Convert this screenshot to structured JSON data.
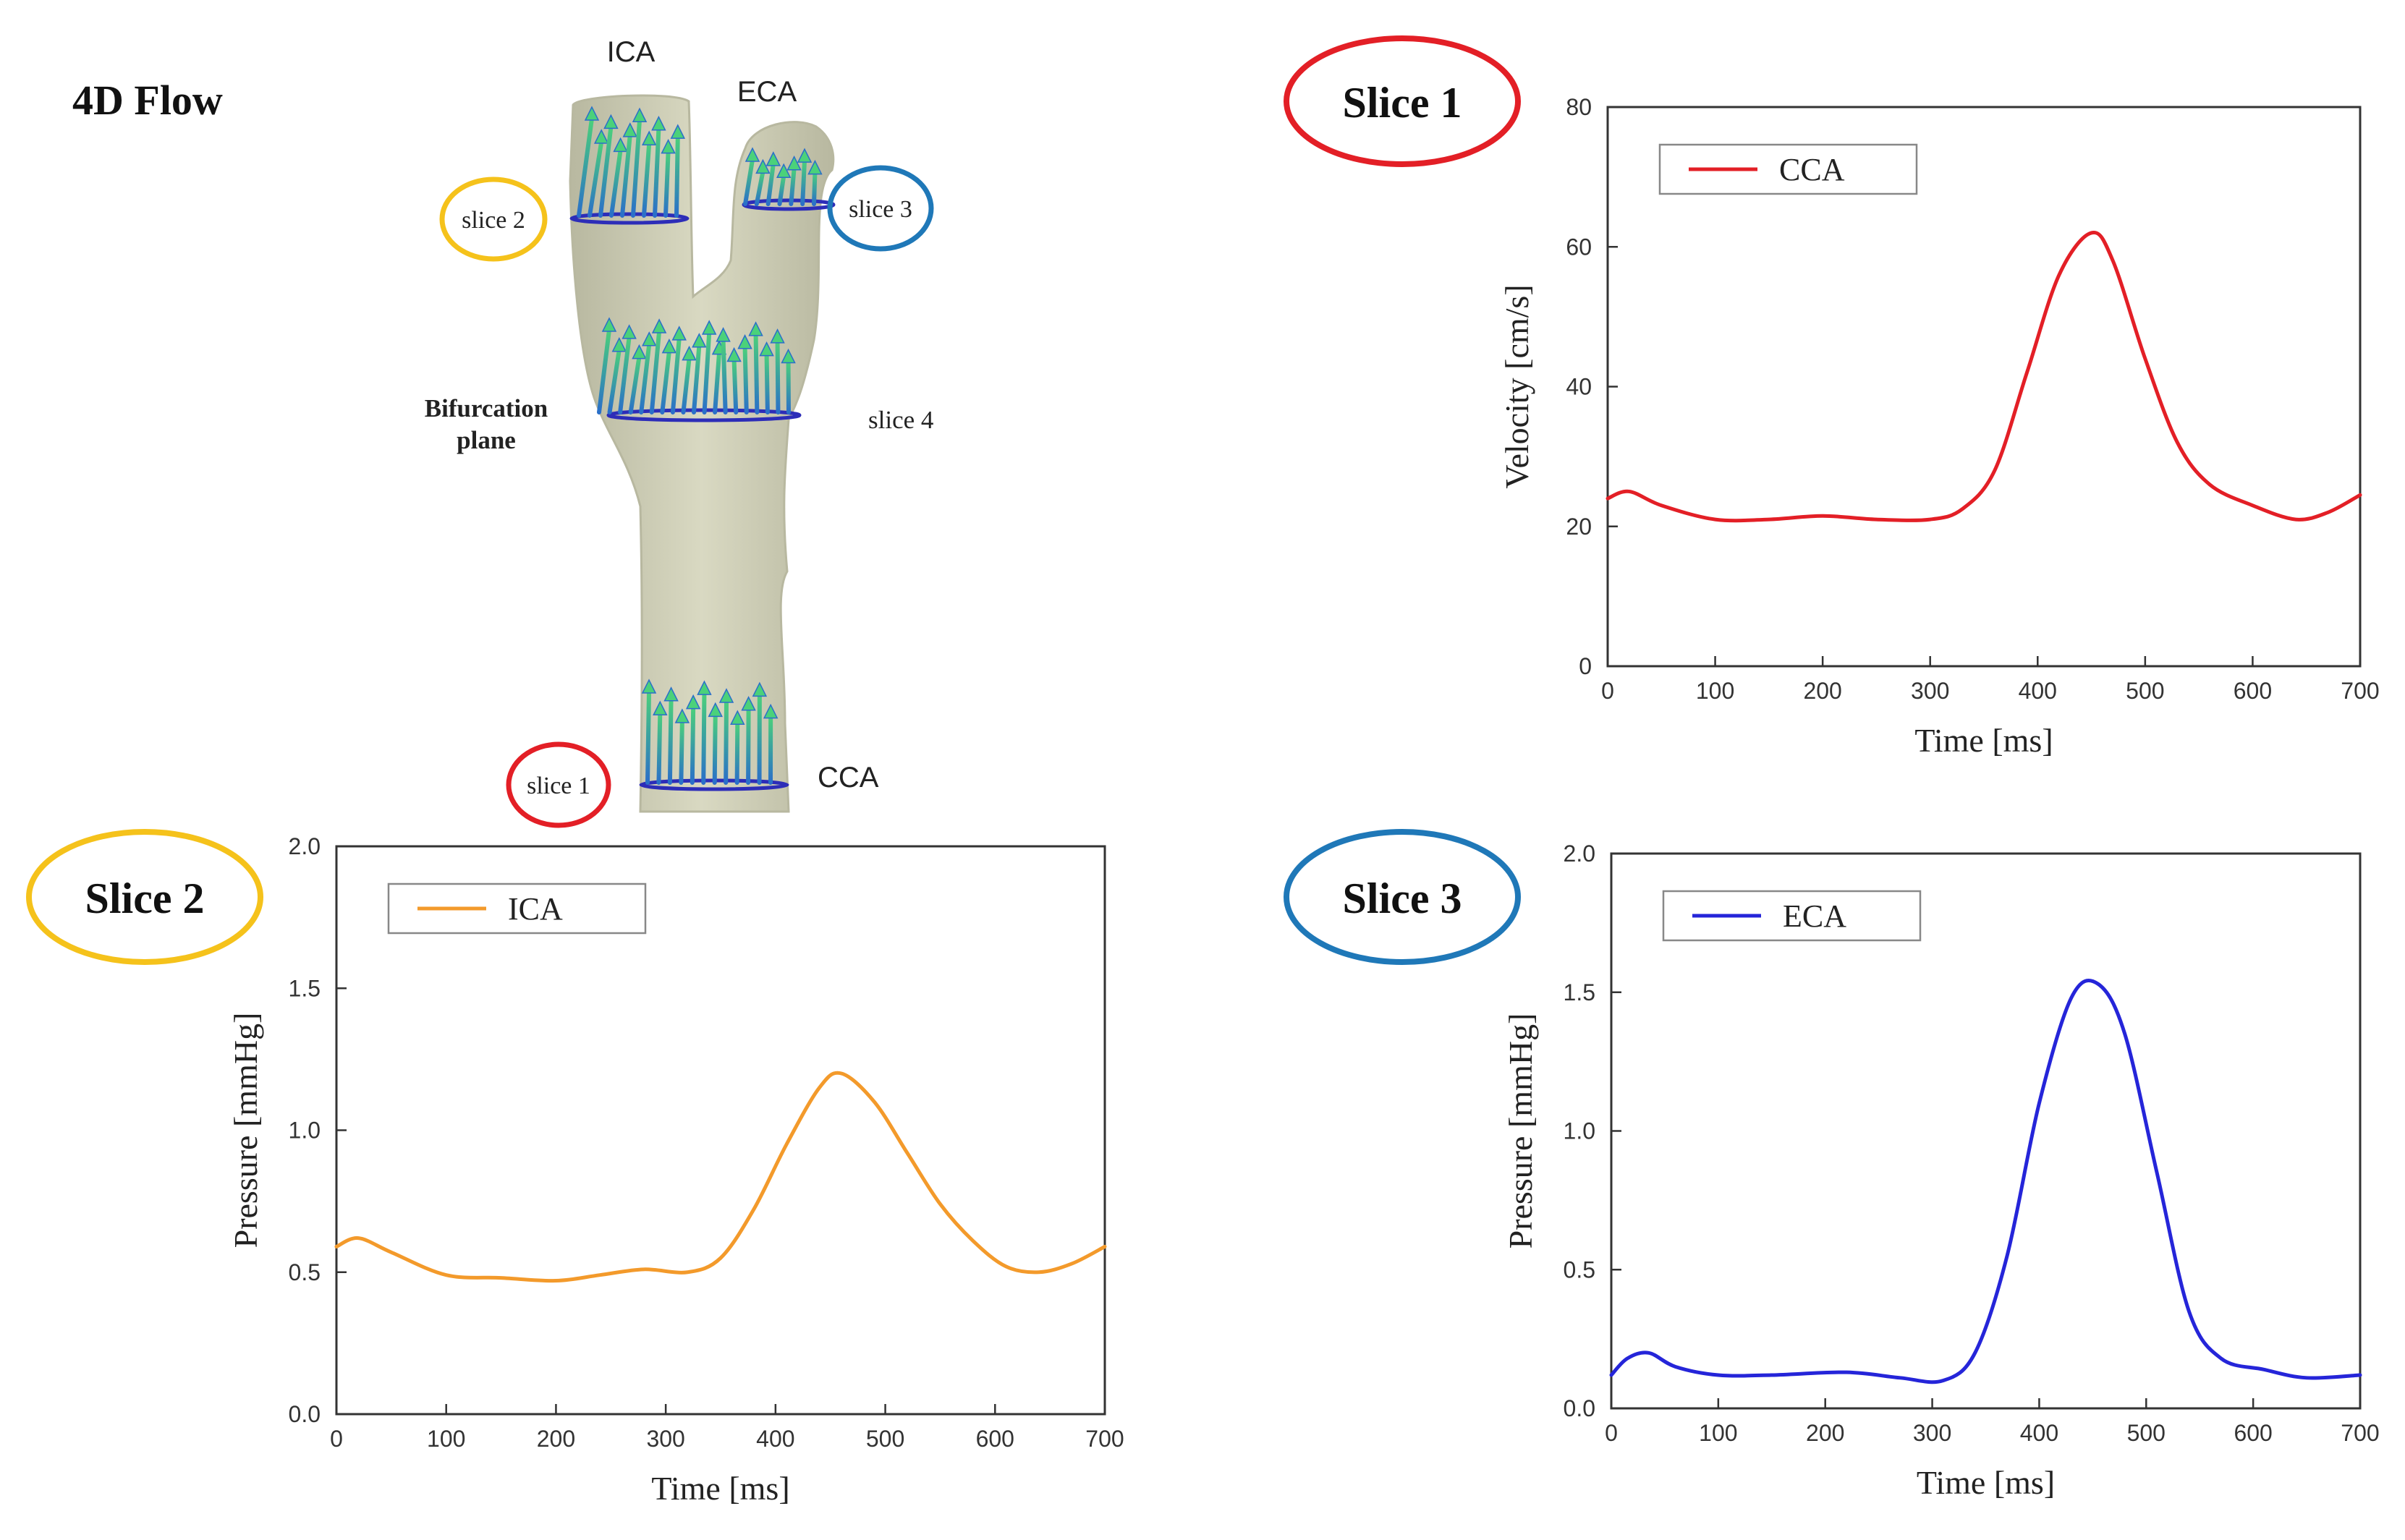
{
  "figure_title": "4D Flow",
  "diagram": {
    "labels": {
      "ica": "ICA",
      "eca": "ECA",
      "cca": "CCA",
      "slice1": "slice 1",
      "slice2": "slice 2",
      "slice3": "slice 3",
      "slice4": "slice 4",
      "bifurcation_line1": "Bifurcation",
      "bifurcation_line2": "plane"
    }
  },
  "panel_tags": {
    "slice1": {
      "text": "Slice 1",
      "color": "#e31f26"
    },
    "slice2": {
      "text": "Slice 2",
      "color": "#f5c21b"
    },
    "slice3": {
      "text": "Slice 3",
      "color": "#1f78b8"
    }
  },
  "colors": {
    "vessel": "#d9d9c2",
    "vessel_edge": "#b8b8a0",
    "slice_plane": "#2d2db8",
    "arrow_light": "#4bd17a",
    "arrow_dark": "#2a6fc9"
  },
  "chart_data": [
    {
      "id": "slice1",
      "type": "line",
      "xlabel": "Time [ms]",
      "ylabel": "Velocity [cm/s]",
      "xlim": [
        0,
        700
      ],
      "ylim": [
        0,
        80
      ],
      "xticks": [
        0,
        100,
        200,
        300,
        400,
        500,
        600,
        700
      ],
      "yticks": [
        0,
        20,
        40,
        60,
        80
      ],
      "ytick_labels": [
        "0",
        "20",
        "40",
        "60",
        "80"
      ],
      "grid": false,
      "legend": "top-left",
      "series": [
        {
          "name": "CCA",
          "color": "#e31f26",
          "x": [
            0,
            20,
            50,
            100,
            150,
            200,
            250,
            300,
            330,
            360,
            390,
            420,
            450,
            470,
            500,
            530,
            560,
            600,
            640,
            670,
            700
          ],
          "y": [
            24,
            25,
            23,
            21,
            21,
            21.5,
            21,
            21,
            22.5,
            28,
            42,
            56,
            62,
            58,
            44,
            32,
            26,
            23,
            21,
            22,
            24.5
          ]
        }
      ]
    },
    {
      "id": "slice2",
      "type": "line",
      "xlabel": "Time [ms]",
      "ylabel": "Pressure [mmHg]",
      "xlim": [
        0,
        700
      ],
      "ylim": [
        0,
        2
      ],
      "xticks": [
        0,
        100,
        200,
        300,
        400,
        500,
        600,
        700
      ],
      "yticks": [
        0,
        0.5,
        1,
        1.5,
        2
      ],
      "ytick_labels": [
        "0.0",
        "0.5",
        "1.0",
        "1.5",
        "2.0"
      ],
      "grid": false,
      "legend": "top-left",
      "series": [
        {
          "name": "ICA",
          "color": "#f39a2b",
          "x": [
            0,
            20,
            50,
            100,
            150,
            200,
            240,
            280,
            320,
            350,
            380,
            410,
            440,
            460,
            490,
            520,
            550,
            580,
            610,
            640,
            670,
            700
          ],
          "y": [
            0.59,
            0.62,
            0.57,
            0.49,
            0.48,
            0.47,
            0.49,
            0.51,
            0.5,
            0.55,
            0.72,
            0.95,
            1.15,
            1.2,
            1.1,
            0.92,
            0.74,
            0.61,
            0.52,
            0.5,
            0.53,
            0.59
          ]
        }
      ]
    },
    {
      "id": "slice3",
      "type": "line",
      "xlabel": "Time [ms]",
      "ylabel": "Pressure [mmHg]",
      "xlim": [
        0,
        700
      ],
      "ylim": [
        0,
        2
      ],
      "xticks": [
        0,
        100,
        200,
        300,
        400,
        500,
        600,
        700
      ],
      "yticks": [
        0,
        0.5,
        1,
        1.5,
        2
      ],
      "ytick_labels": [
        "0.0",
        "0.5",
        "1.0",
        "1.5",
        "2.0"
      ],
      "grid": false,
      "legend": "top-left",
      "series": [
        {
          "name": "ECA",
          "color": "#2525d9",
          "x": [
            0,
            15,
            35,
            60,
            100,
            150,
            220,
            270,
            310,
            340,
            370,
            400,
            430,
            455,
            480,
            510,
            540,
            570,
            610,
            650,
            700
          ],
          "y": [
            0.12,
            0.18,
            0.2,
            0.15,
            0.12,
            0.12,
            0.13,
            0.11,
            0.1,
            0.2,
            0.55,
            1.1,
            1.48,
            1.53,
            1.35,
            0.85,
            0.35,
            0.18,
            0.14,
            0.11,
            0.12
          ]
        }
      ]
    }
  ]
}
